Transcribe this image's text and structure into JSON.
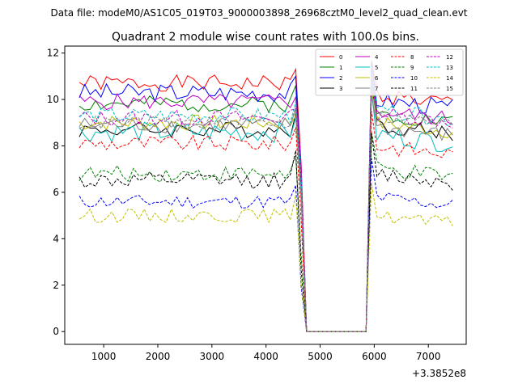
{
  "chart_data": {
    "type": "line",
    "suptitle": "Data file: modeM0/AS1C05_019T03_9000003898_26968cztM0_level2_quad_clean.evt",
    "title": "Quadrant 2 module wise count rates with 100.0s bins.",
    "xlabel": "",
    "ylabel": "",
    "x_offset_label": "+3.3852e8",
    "xlim": [
      280,
      7700
    ],
    "ylim": [
      -0.55,
      12.3
    ],
    "x_ticks": [
      1000,
      2000,
      3000,
      4000,
      5000,
      6000,
      7000
    ],
    "y_ticks": [
      0,
      2,
      4,
      6,
      8,
      10,
      12
    ],
    "x_start": 550,
    "x_step": 100,
    "gap_start": 4750,
    "gap_end": 5850,
    "legend_position": "top-right",
    "series": [
      {
        "name": "0",
        "color": "#ff0000",
        "dashed": false,
        "base": 10.7,
        "seed": 1,
        "amp": 0.35,
        "last": 11.3,
        "post": 10.2
      },
      {
        "name": "1",
        "color": "#008000",
        "dashed": false,
        "base": 9.8,
        "seed": 2,
        "amp": 0.35,
        "last": 10.6,
        "post": 9.4
      },
      {
        "name": "2",
        "color": "#0000ff",
        "dashed": false,
        "base": 10.3,
        "seed": 3,
        "amp": 0.4,
        "last": 11.0,
        "post": 10.0
      },
      {
        "name": "3",
        "color": "#000000",
        "dashed": false,
        "base": 8.7,
        "seed": 4,
        "amp": 0.35,
        "last": 9.4,
        "post": 8.9
      },
      {
        "name": "4",
        "color": "#bf00bf",
        "dashed": false,
        "base": 9.9,
        "seed": 5,
        "amp": 0.35,
        "last": 10.1,
        "post": 9.5
      },
      {
        "name": "5",
        "color": "#00bfbf",
        "dashed": false,
        "base": 8.6,
        "seed": 6,
        "amp": 0.45,
        "last": 9.2,
        "post": 8.5
      },
      {
        "name": "6",
        "color": "#bfbf00",
        "dashed": false,
        "base": 9.0,
        "seed": 7,
        "amp": 0.35,
        "last": 9.3,
        "post": 9.0
      },
      {
        "name": "7",
        "color": "#808080",
        "dashed": false,
        "base": 8.9,
        "seed": 8,
        "amp": 0.35,
        "last": 9.6,
        "post": 8.8
      },
      {
        "name": "8",
        "color": "#ff0000",
        "dashed": true,
        "base": 8.1,
        "seed": 9,
        "amp": 0.35,
        "last": 8.8,
        "post": 8.0
      },
      {
        "name": "9",
        "color": "#008000",
        "dashed": true,
        "base": 6.8,
        "seed": 10,
        "amp": 0.35,
        "last": 7.6,
        "post": 7.0
      },
      {
        "name": "10",
        "color": "#0000ff",
        "dashed": true,
        "base": 5.6,
        "seed": 11,
        "amp": 0.3,
        "last": 6.3,
        "post": 5.8
      },
      {
        "name": "11",
        "color": "#000000",
        "dashed": true,
        "base": 6.5,
        "seed": 12,
        "amp": 0.35,
        "last": 7.8,
        "post": 6.8
      },
      {
        "name": "12",
        "color": "#bf00bf",
        "dashed": true,
        "base": 9.2,
        "seed": 13,
        "amp": 0.35,
        "last": 9.6,
        "post": 9.4
      },
      {
        "name": "13",
        "color": "#00bfbf",
        "dashed": true,
        "base": 9.3,
        "seed": 14,
        "amp": 0.35,
        "last": 9.9,
        "post": 9.5
      },
      {
        "name": "14",
        "color": "#bfbf00",
        "dashed": true,
        "base": 5.0,
        "seed": 15,
        "amp": 0.3,
        "last": 5.9,
        "post": 5.0
      },
      {
        "name": "15",
        "color": "#808080",
        "dashed": true,
        "base": 9.0,
        "seed": 16,
        "amp": 0.3,
        "last": 9.7,
        "post": 9.3
      }
    ]
  }
}
